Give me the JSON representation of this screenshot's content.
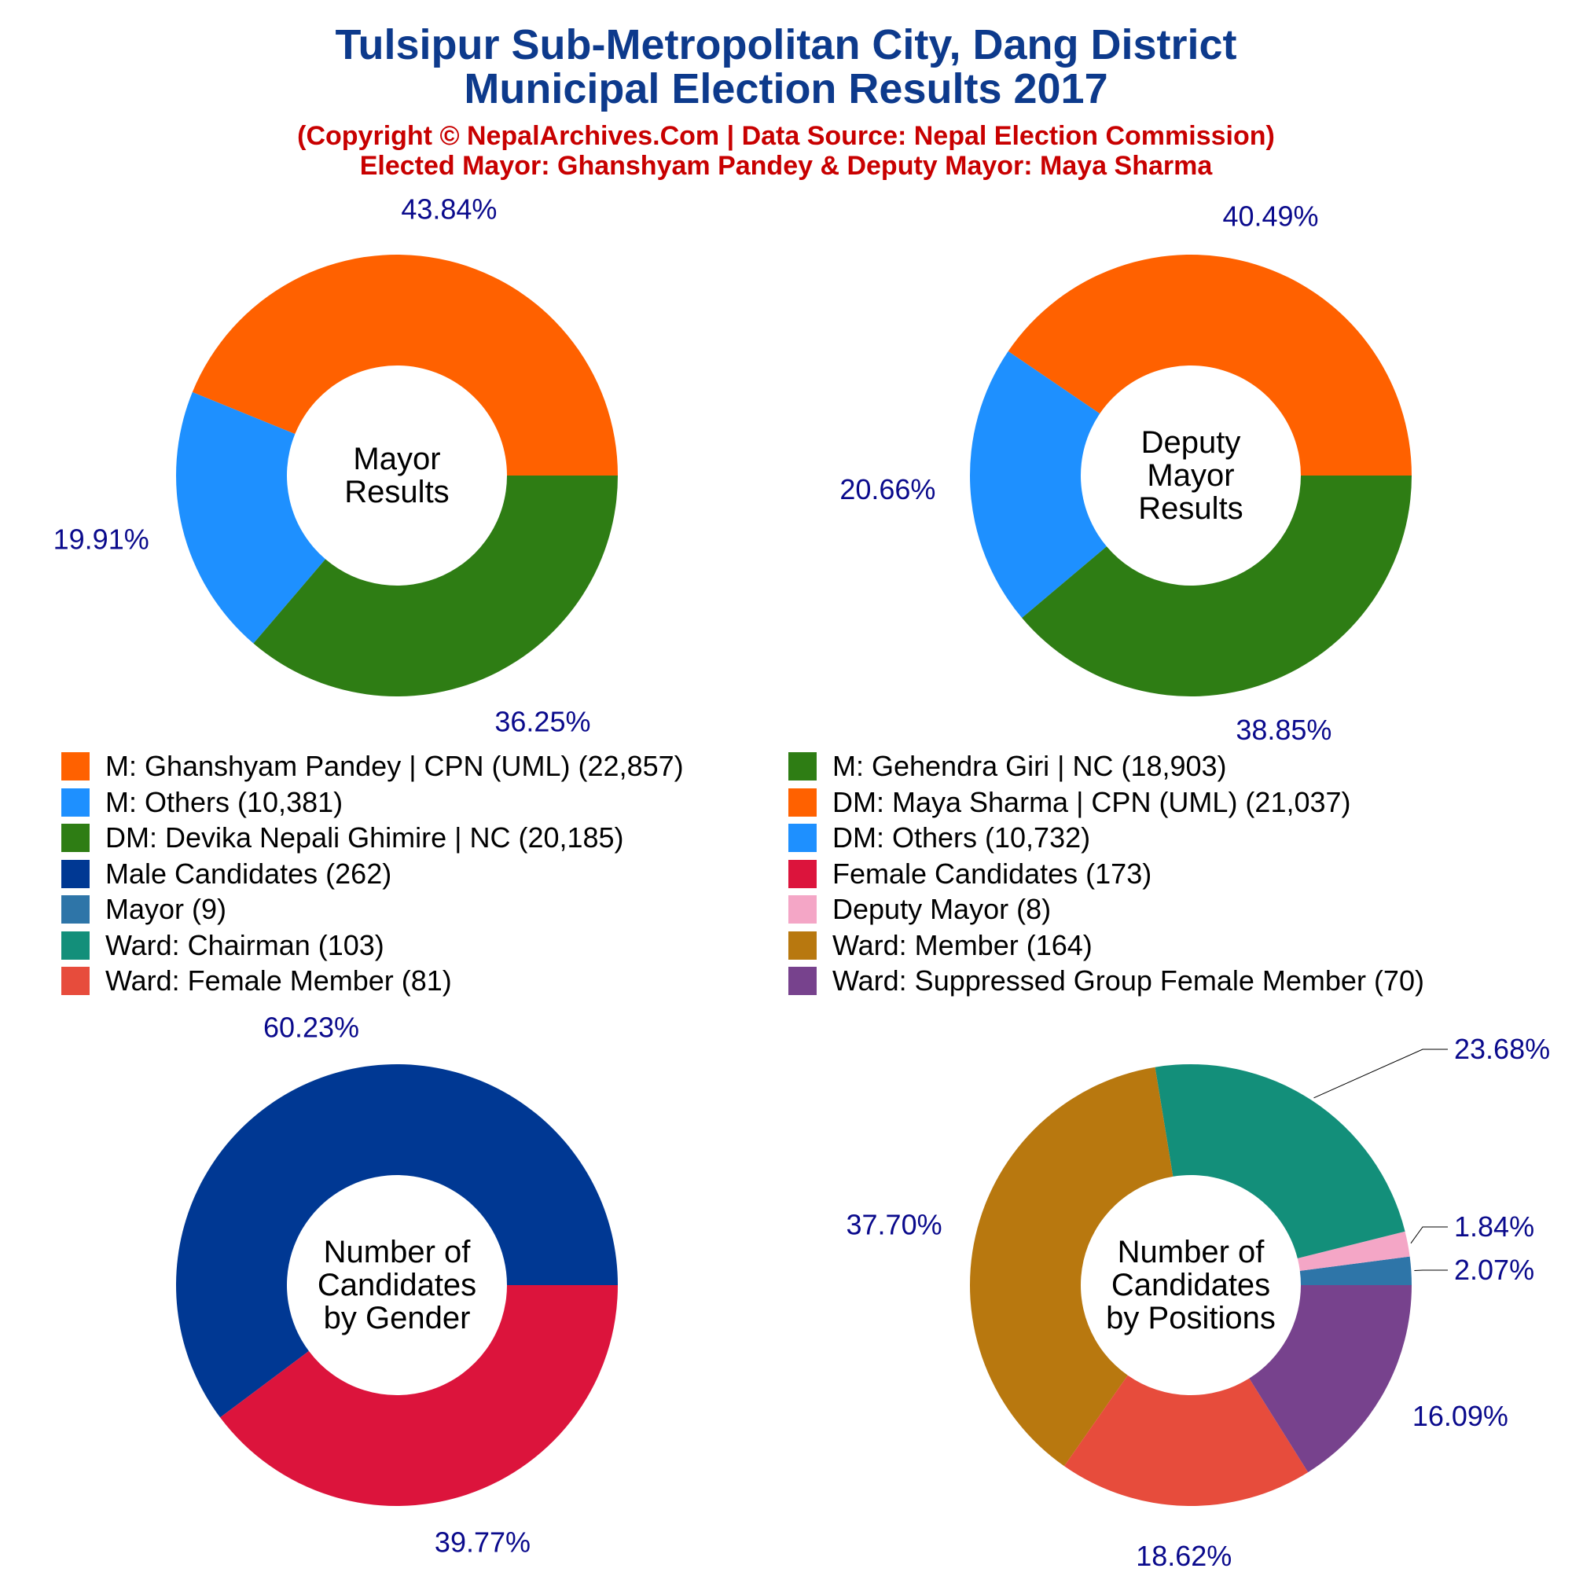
{
  "title": {
    "line1": "Tulsipur Sub-Metropolitan City, Dang District",
    "line2": "Municipal Election Results 2017",
    "subtitle1": "(Copyright © NepalArchives.Com | Data Source: Nepal Election Commission)",
    "subtitle2": "Elected Mayor: Ghanshyam Pandey & Deputy Mayor: Maya Sharma"
  },
  "colors": {
    "title": "#0d3a8c",
    "subtitle": "#c80000",
    "percent_label": "#0a0a8c",
    "center_label": "#000000"
  },
  "chart_data": [
    {
      "type": "pie",
      "donut": true,
      "center_label": [
        "Mayor",
        "Results"
      ],
      "slices": [
        {
          "label": "M: Ghanshyam Pandey | CPN (UML)",
          "value": 22857,
          "percent": "43.84%",
          "color": "#ff6100"
        },
        {
          "label": "M: Others",
          "value": 10381,
          "percent": "19.91%",
          "color": "#1e90ff"
        },
        {
          "label": "M: Gehendra Giri | NC",
          "value": 18903,
          "percent": "36.25%",
          "color": "#2e7d14"
        }
      ]
    },
    {
      "type": "pie",
      "donut": true,
      "center_label": [
        "Deputy",
        "Mayor",
        "Results"
      ],
      "slices": [
        {
          "label": "DM: Maya Sharma | CPN (UML)",
          "value": 21037,
          "percent": "40.49%",
          "color": "#ff6100"
        },
        {
          "label": "DM: Others",
          "value": 10732,
          "percent": "20.66%",
          "color": "#1e90ff"
        },
        {
          "label": "DM: Devika Nepali Ghimire | NC",
          "value": 20185,
          "percent": "38.85%",
          "color": "#2e7d14"
        }
      ]
    },
    {
      "type": "pie",
      "donut": true,
      "center_label": [
        "Number of",
        "Candidates",
        "by Gender"
      ],
      "slices": [
        {
          "label": "Male Candidates",
          "value": 262,
          "percent": "60.23%",
          "color": "#003893"
        },
        {
          "label": "Female Candidates",
          "value": 173,
          "percent": "39.77%",
          "color": "#dc143c"
        }
      ]
    },
    {
      "type": "pie",
      "donut": true,
      "center_label": [
        "Number of",
        "Candidates",
        "by Positions"
      ],
      "slices": [
        {
          "label": "Mayor",
          "value": 9,
          "percent": "2.07%",
          "color": "#2e75a8"
        },
        {
          "label": "Deputy Mayor",
          "value": 8,
          "percent": "1.84%",
          "color": "#f4a6c6"
        },
        {
          "label": "Ward: Chairman",
          "value": 103,
          "percent": "23.68%",
          "color": "#138f7a"
        },
        {
          "label": "Ward: Member",
          "value": 164,
          "percent": "37.70%",
          "color": "#b8780f"
        },
        {
          "label": "Ward: Female Member",
          "value": 81,
          "percent": "18.62%",
          "color": "#e74c3c"
        },
        {
          "label": "Ward: Suppressed Group Female Member",
          "value": 70,
          "percent": "16.09%",
          "color": "#77428d"
        }
      ]
    }
  ],
  "legend": [
    {
      "text": "M: Ghanshyam Pandey | CPN (UML) (22,857)",
      "color": "#ff6100"
    },
    {
      "text": "M: Gehendra Giri | NC (18,903)",
      "color": "#2e7d14"
    },
    {
      "text": "M: Others (10,381)",
      "color": "#1e90ff"
    },
    {
      "text": "DM: Maya Sharma | CPN (UML) (21,037)",
      "color": "#ff6100"
    },
    {
      "text": "DM: Devika Nepali Ghimire | NC (20,185)",
      "color": "#2e7d14"
    },
    {
      "text": "DM: Others (10,732)",
      "color": "#1e90ff"
    },
    {
      "text": "Male Candidates (262)",
      "color": "#003893"
    },
    {
      "text": "Female Candidates (173)",
      "color": "#dc143c"
    },
    {
      "text": "Mayor (9)",
      "color": "#2e75a8"
    },
    {
      "text": "Deputy Mayor (8)",
      "color": "#f4a6c6"
    },
    {
      "text": "Ward: Chairman (103)",
      "color": "#138f7a"
    },
    {
      "text": "Ward: Member (164)",
      "color": "#b8780f"
    },
    {
      "text": "Ward: Female Member (81)",
      "color": "#e74c3c"
    },
    {
      "text": "Ward: Suppressed Group Female Member (70)",
      "color": "#77428d"
    }
  ]
}
